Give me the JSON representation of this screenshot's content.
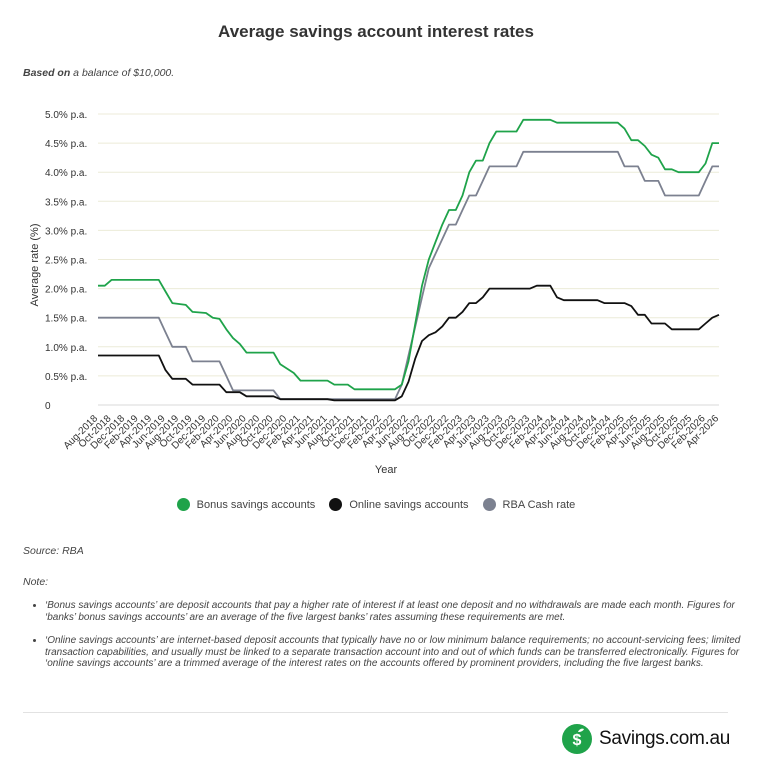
{
  "page": {
    "title": "Average savings account interest rates",
    "subtitle_prefix": "Based on",
    "subtitle_rest": " a balance of $10,000.",
    "source": "Source: RBA",
    "note_label": "Note:",
    "notes": [
      "‘Bonus savings accounts’ are deposit accounts that pay a higher rate of interest if at least one deposit and no withdrawals are made each month. Figures for ‘banks’ bonus savings accounts’ are an average of the five largest banks’ rates assuming these requirements are met.",
      "‘Online savings accounts’ are internet-based deposit accounts that typically have no or low minimum balance requirements; no account-servicing fees; limited transaction capabilities, and usually must be linked to a separate transaction account into and out of which funds can be transferred electronically. Figures for ‘online savings accounts’ are a trimmed average of the interest rates on the accounts offered by prominent providers, including the five largest banks."
    ],
    "brand": "Savings.com.au",
    "brand_icon": "dollar-sprout-icon"
  },
  "chart_data": {
    "type": "line",
    "xlabel": "Year",
    "ylabel": "Average rate (%)",
    "ylim": [
      0,
      5.0
    ],
    "y_ticks": [
      "0",
      "0.5% p.a.",
      "1.0% p.a.",
      "1.5% p.a.",
      "2.0% p.a.",
      "2.5% p.a.",
      "3.0% p.a.",
      "3.5% p.a.",
      "4.0% p.a.",
      "4.5% p.a.",
      "5.0% p.a."
    ],
    "x_range": [
      "Aug-2018",
      "Apr-2026"
    ],
    "x_ticks": [
      "Aug-2018",
      "Oct-2018",
      "Dec-2018",
      "Feb-2019",
      "Apr-2019",
      "Jun-2019",
      "Aug-2019",
      "Oct-2019",
      "Dec-2019",
      "Feb-2020",
      "Apr-2020",
      "Jun-2020",
      "Aug-2020",
      "Oct-2020",
      "Dec-2020",
      "Feb-2021",
      "Apr-2021",
      "Jun-2021",
      "Aug-2021",
      "Oct-2021",
      "Dec-2021",
      "Feb-2022",
      "Apr-2022",
      "Jun-2022",
      "Aug-2022",
      "Oct-2022",
      "Dec-2022",
      "Feb-2023",
      "Apr-2023",
      "Jun-2023",
      "Aug-2023",
      "Oct-2023",
      "Dec-2023",
      "Feb-2024",
      "Apr-2024",
      "Jun-2024",
      "Aug-2024",
      "Oct-2024",
      "Dec-2024",
      "Feb-2025",
      "Apr-2025",
      "Jun-2025",
      "Aug-2025",
      "Oct-2025",
      "Dec-2025",
      "Feb-2026",
      "Apr-2026"
    ],
    "grid": "horizontal",
    "legend": "bottom",
    "series": [
      {
        "name": "Bonus savings accounts",
        "color": "#1fa34a",
        "points": [
          [
            "Aug-2018",
            2.05
          ],
          [
            "Sep-2018",
            2.05
          ],
          [
            "Oct-2018",
            2.15
          ],
          [
            "Nov-2018",
            2.15
          ],
          [
            "Apr-2019",
            2.15
          ],
          [
            "May-2019",
            2.15
          ],
          [
            "Jun-2019",
            1.95
          ],
          [
            "Jul-2019",
            1.75
          ],
          [
            "Sep-2019",
            1.72
          ],
          [
            "Oct-2019",
            1.6
          ],
          [
            "Dec-2019",
            1.58
          ],
          [
            "Jan-2020",
            1.5
          ],
          [
            "Feb-2020",
            1.48
          ],
          [
            "Mar-2020",
            1.3
          ],
          [
            "Apr-2020",
            1.15
          ],
          [
            "May-2020",
            1.05
          ],
          [
            "Jun-2020",
            0.9
          ],
          [
            "Oct-2020",
            0.9
          ],
          [
            "Nov-2020",
            0.7
          ],
          [
            "Jan-2021",
            0.55
          ],
          [
            "Feb-2021",
            0.42
          ],
          [
            "Jun-2021",
            0.42
          ],
          [
            "Jul-2021",
            0.35
          ],
          [
            "Sep-2021",
            0.35
          ],
          [
            "Oct-2021",
            0.27
          ],
          [
            "Apr-2022",
            0.27
          ],
          [
            "May-2022",
            0.35
          ],
          [
            "Jun-2022",
            0.75
          ],
          [
            "Jul-2022",
            1.4
          ],
          [
            "Aug-2022",
            2.05
          ],
          [
            "Sep-2022",
            2.5
          ],
          [
            "Oct-2022",
            2.8
          ],
          [
            "Nov-2022",
            3.1
          ],
          [
            "Dec-2022",
            3.35
          ],
          [
            "Jan-2023",
            3.35
          ],
          [
            "Feb-2023",
            3.6
          ],
          [
            "Mar-2023",
            4.0
          ],
          [
            "Apr-2023",
            4.2
          ],
          [
            "May-2023",
            4.2
          ],
          [
            "Jun-2023",
            4.5
          ],
          [
            "Jul-2023",
            4.7
          ],
          [
            "Oct-2023",
            4.7
          ],
          [
            "Nov-2023",
            4.9
          ],
          [
            "Mar-2024",
            4.9
          ],
          [
            "Apr-2024",
            4.85
          ],
          [
            "Jan-2025",
            4.85
          ],
          [
            "Feb-2025",
            4.75
          ],
          [
            "Mar-2025",
            4.55
          ],
          [
            "Apr-2025",
            4.55
          ],
          [
            "May-2025",
            4.45
          ],
          [
            "Jun-2025",
            4.3
          ],
          [
            "Jul-2025",
            4.25
          ],
          [
            "Aug-2025",
            4.05
          ],
          [
            "Sep-2025",
            4.05
          ],
          [
            "Oct-2025",
            4.0
          ],
          [
            "Jan-2026",
            4.0
          ],
          [
            "Feb-2026",
            4.15
          ],
          [
            "Mar-2026",
            4.5
          ],
          [
            "Apr-2026",
            4.5
          ]
        ]
      },
      {
        "name": "Online savings accounts",
        "color": "#111111",
        "points": [
          [
            "Aug-2018",
            0.85
          ],
          [
            "May-2019",
            0.85
          ],
          [
            "Jun-2019",
            0.6
          ],
          [
            "Jul-2019",
            0.45
          ],
          [
            "Sep-2019",
            0.45
          ],
          [
            "Oct-2019",
            0.35
          ],
          [
            "Feb-2020",
            0.35
          ],
          [
            "Mar-2020",
            0.22
          ],
          [
            "May-2020",
            0.22
          ],
          [
            "Jun-2020",
            0.15
          ],
          [
            "Oct-2020",
            0.15
          ],
          [
            "Nov-2020",
            0.1
          ],
          [
            "Jun-2021",
            0.1
          ],
          [
            "Jul-2021",
            0.08
          ],
          [
            "Apr-2022",
            0.08
          ],
          [
            "May-2022",
            0.15
          ],
          [
            "Jun-2022",
            0.4
          ],
          [
            "Jul-2022",
            0.8
          ],
          [
            "Aug-2022",
            1.1
          ],
          [
            "Sep-2022",
            1.2
          ],
          [
            "Oct-2022",
            1.25
          ],
          [
            "Nov-2022",
            1.35
          ],
          [
            "Dec-2022",
            1.5
          ],
          [
            "Jan-2023",
            1.5
          ],
          [
            "Feb-2023",
            1.6
          ],
          [
            "Mar-2023",
            1.75
          ],
          [
            "Apr-2023",
            1.75
          ],
          [
            "May-2023",
            1.85
          ],
          [
            "Jun-2023",
            2.0
          ],
          [
            "Dec-2023",
            2.0
          ],
          [
            "Jan-2024",
            2.05
          ],
          [
            "Mar-2024",
            2.05
          ],
          [
            "Apr-2024",
            1.85
          ],
          [
            "May-2024",
            1.8
          ],
          [
            "Oct-2024",
            1.8
          ],
          [
            "Nov-2024",
            1.75
          ],
          [
            "Feb-2025",
            1.75
          ],
          [
            "Mar-2025",
            1.7
          ],
          [
            "Apr-2025",
            1.55
          ],
          [
            "May-2025",
            1.55
          ],
          [
            "Jun-2025",
            1.4
          ],
          [
            "Aug-2025",
            1.4
          ],
          [
            "Sep-2025",
            1.3
          ],
          [
            "Jan-2026",
            1.3
          ],
          [
            "Feb-2026",
            1.4
          ],
          [
            "Mar-2026",
            1.5
          ],
          [
            "Apr-2026",
            1.55
          ]
        ]
      },
      {
        "name": "RBA Cash rate",
        "color": "#7c8190",
        "points": [
          [
            "Aug-2018",
            1.5
          ],
          [
            "May-2019",
            1.5
          ],
          [
            "Jun-2019",
            1.25
          ],
          [
            "Jul-2019",
            1.0
          ],
          [
            "Sep-2019",
            1.0
          ],
          [
            "Oct-2019",
            0.75
          ],
          [
            "Feb-2020",
            0.75
          ],
          [
            "Mar-2020",
            0.5
          ],
          [
            "Apr-2020",
            0.25
          ],
          [
            "Oct-2020",
            0.25
          ],
          [
            "Nov-2020",
            0.1
          ],
          [
            "Apr-2022",
            0.1
          ],
          [
            "May-2022",
            0.35
          ],
          [
            "Jun-2022",
            0.85
          ],
          [
            "Jul-2022",
            1.35
          ],
          [
            "Aug-2022",
            1.85
          ],
          [
            "Sep-2022",
            2.35
          ],
          [
            "Oct-2022",
            2.6
          ],
          [
            "Nov-2022",
            2.85
          ],
          [
            "Dec-2022",
            3.1
          ],
          [
            "Jan-2023",
            3.1
          ],
          [
            "Feb-2023",
            3.35
          ],
          [
            "Mar-2023",
            3.6
          ],
          [
            "Apr-2023",
            3.6
          ],
          [
            "May-2023",
            3.85
          ],
          [
            "Jun-2023",
            4.1
          ],
          [
            "Oct-2023",
            4.1
          ],
          [
            "Nov-2023",
            4.35
          ],
          [
            "Jan-2025",
            4.35
          ],
          [
            "Feb-2025",
            4.1
          ],
          [
            "Apr-2025",
            4.1
          ],
          [
            "May-2025",
            3.85
          ],
          [
            "Jul-2025",
            3.85
          ],
          [
            "Aug-2025",
            3.6
          ],
          [
            "Jan-2026",
            3.6
          ],
          [
            "Feb-2026",
            3.85
          ],
          [
            "Mar-2026",
            4.1
          ],
          [
            "Apr-2026",
            4.1
          ]
        ]
      }
    ]
  }
}
